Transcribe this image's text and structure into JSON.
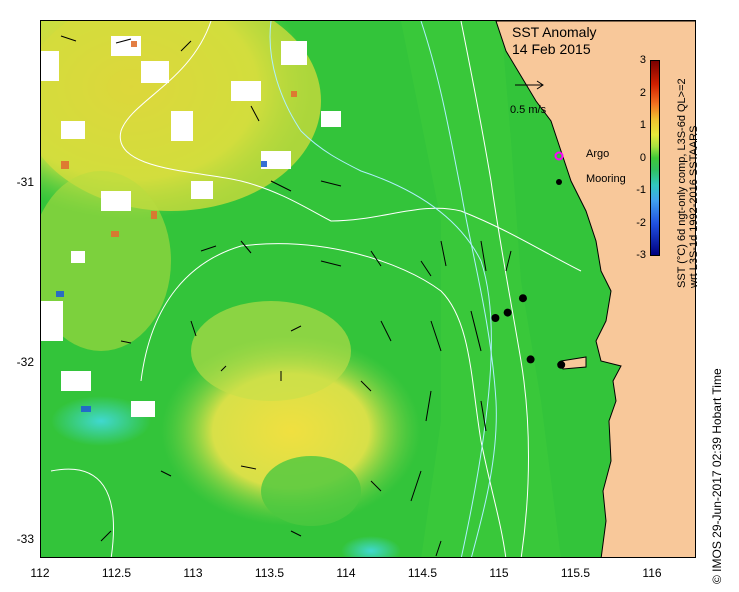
{
  "map": {
    "title": "SST Anomaly",
    "date": "14 Feb 2015",
    "x_ticks": [
      "112",
      "112.5",
      "113",
      "113.5",
      "114",
      "114.5",
      "115",
      "115.5",
      "116"
    ],
    "y_ticks": [
      "-31",
      "-32",
      "-33"
    ],
    "scale_label": "0.5 m/s",
    "legend": {
      "argo_label": "Argo",
      "mooring_label": "Mooring"
    },
    "colorbar": {
      "ticks": [
        "3",
        "2",
        "1",
        "0",
        "-1",
        "-2",
        "-3"
      ],
      "label_line1": "SST (°C) 6d ngt-only comp, L3S-6d QL>=2",
      "label_line2": "wrt L3S-1d 1992-2016 SSTAARS"
    },
    "credit": "© IMOS 29-Jun-2017 02:39 Hobart Time",
    "colors": {
      "land": "#f8c89a",
      "ocean_base": "#2fc23a",
      "anomaly_warm": "#e8e83a",
      "anomaly_cool": "#3fd8b0",
      "contour": "#ffffff",
      "mooring": "#000000",
      "argo": "#ff00ff"
    },
    "moorings": [
      {
        "lon": 114.97,
        "lat": -31.75
      },
      {
        "lon": 115.05,
        "lat": -31.72
      },
      {
        "lon": 115.15,
        "lat": -31.64
      },
      {
        "lon": 115.2,
        "lat": -31.98
      },
      {
        "lon": 115.4,
        "lat": -32.01
      }
    ]
  }
}
